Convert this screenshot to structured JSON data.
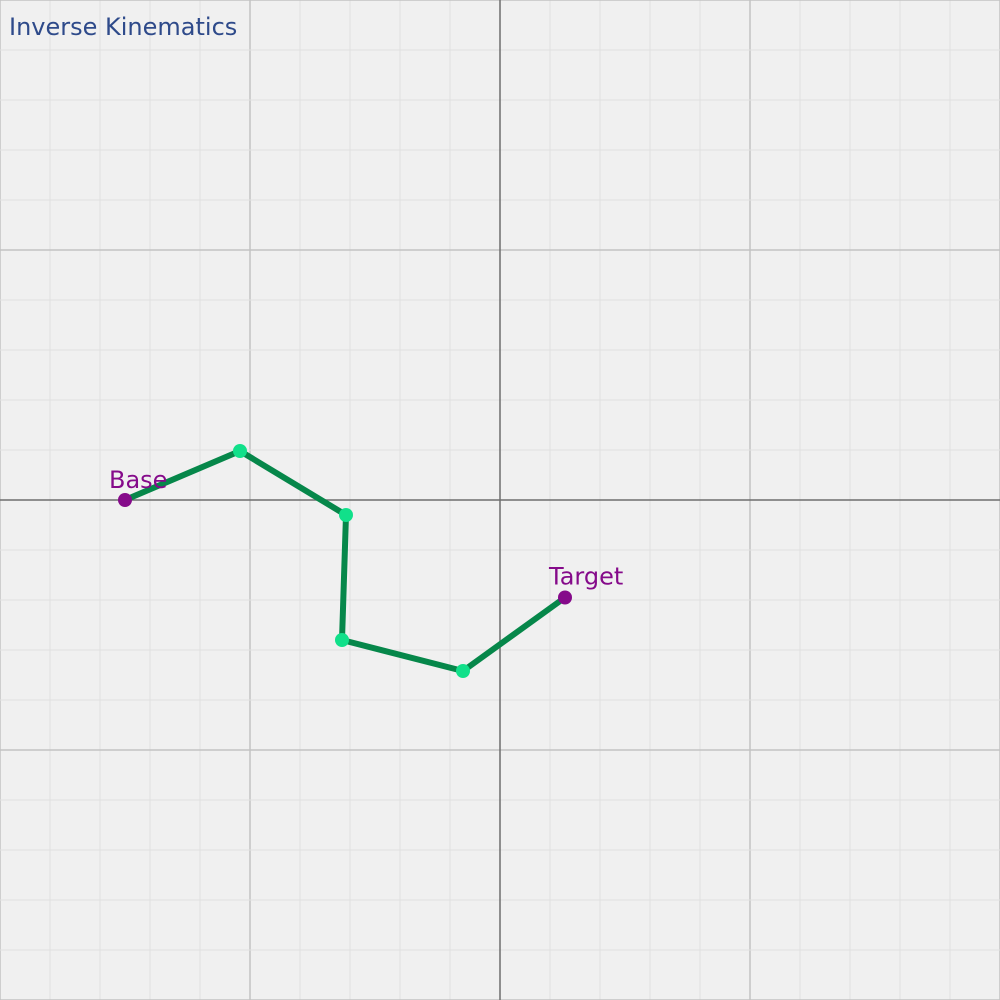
{
  "title": "Inverse Kinematics",
  "colors": {
    "background": "#f0f0f0",
    "grid_minor": "#e0e0e0",
    "grid_major": "#c2c2c2",
    "axis": "#6e6e6e",
    "arm": "#06874a",
    "joint": "#11e08a",
    "endpoint": "#850a8a",
    "title": "#2e4a8a"
  },
  "world": {
    "xmin": -10,
    "xmax": 10,
    "ymin": -10,
    "ymax": 10,
    "minor_step": 1,
    "major_step": 5
  },
  "base": {
    "label": "Base",
    "x": -7.5,
    "y": 0
  },
  "target": {
    "label": "Target",
    "x": 1.3,
    "y": -1.95
  },
  "joints": [
    {
      "x": -5.2,
      "y": 0.98
    },
    {
      "x": -3.08,
      "y": -0.3
    },
    {
      "x": -3.16,
      "y": -2.8
    },
    {
      "x": -0.74,
      "y": -3.42
    }
  ]
}
